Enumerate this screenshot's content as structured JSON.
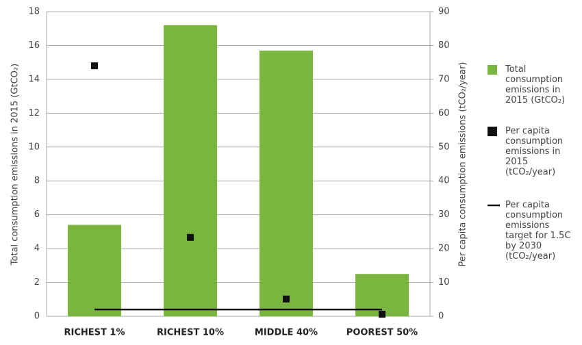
{
  "chart_data": {
    "type": "bar",
    "categories": [
      "RICHEST 1%",
      "RICHEST 10%",
      "MIDDLE 40%",
      "POOREST 50%"
    ],
    "ylabel": "Total consumption emissions in 2015 (GtCO₂)",
    "y2label": "Per capita consumption emissions (tCO₂/year)",
    "ylim": [
      0,
      18
    ],
    "yticks": [
      0,
      2,
      4,
      6,
      8,
      10,
      12,
      14,
      16,
      18
    ],
    "y2lim": [
      0,
      90
    ],
    "y2ticks": [
      0,
      10,
      20,
      30,
      40,
      50,
      60,
      70,
      80,
      90
    ],
    "grid": true,
    "series": [
      {
        "name": "Total consumption emissions in 2015 (GtCO₂)",
        "type": "bar",
        "color": "#7ab540",
        "values": [
          5.4,
          17.2,
          15.7,
          2.5
        ]
      },
      {
        "name": "Per capita consumption emissions in 2015 (tCO₂/year)",
        "type": "scatter",
        "color": "#111111",
        "axis": "y2",
        "values": [
          74,
          23.3,
          5.1,
          0.6
        ]
      },
      {
        "name": "Per capita consumption emissions target for 1.5C by 2030 (tCO₂/year)",
        "type": "line",
        "color": "#111111",
        "axis": "y2",
        "values": [
          2,
          2,
          2,
          2
        ]
      }
    ]
  }
}
